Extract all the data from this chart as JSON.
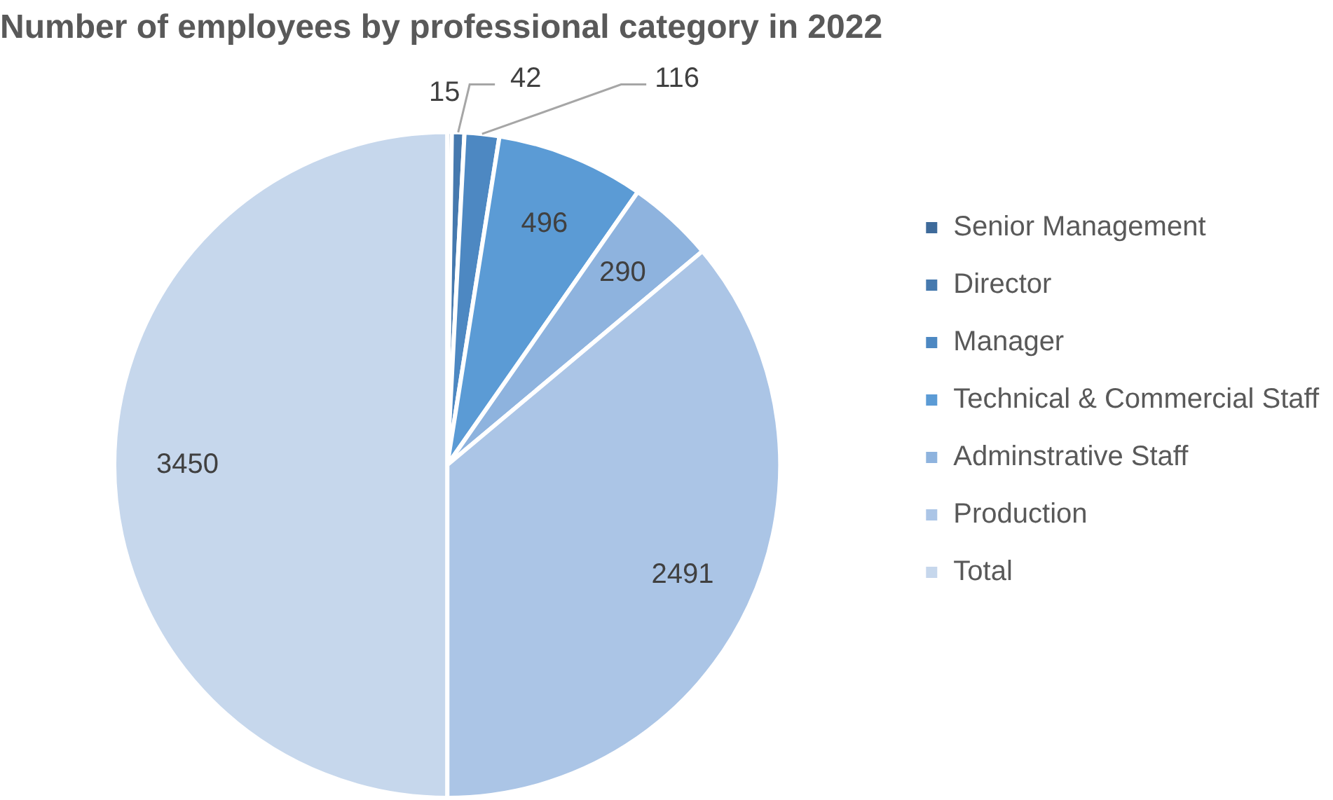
{
  "chart_data": {
    "type": "pie",
    "title": "Number of employees by professional category in 2022",
    "categories": [
      "Senior Management",
      "Director",
      "Manager",
      "Technical & Commercial Staff",
      "Adminstrative Staff",
      "Production",
      "Total"
    ],
    "values": [
      15,
      42,
      116,
      496,
      290,
      2491,
      3450
    ],
    "colors": [
      "#3e6a9a",
      "#4679ae",
      "#4d88c2",
      "#5b9bd5",
      "#8eb3de",
      "#abc5e6",
      "#c6d7ec"
    ],
    "data_labels": true,
    "legend": "right"
  }
}
